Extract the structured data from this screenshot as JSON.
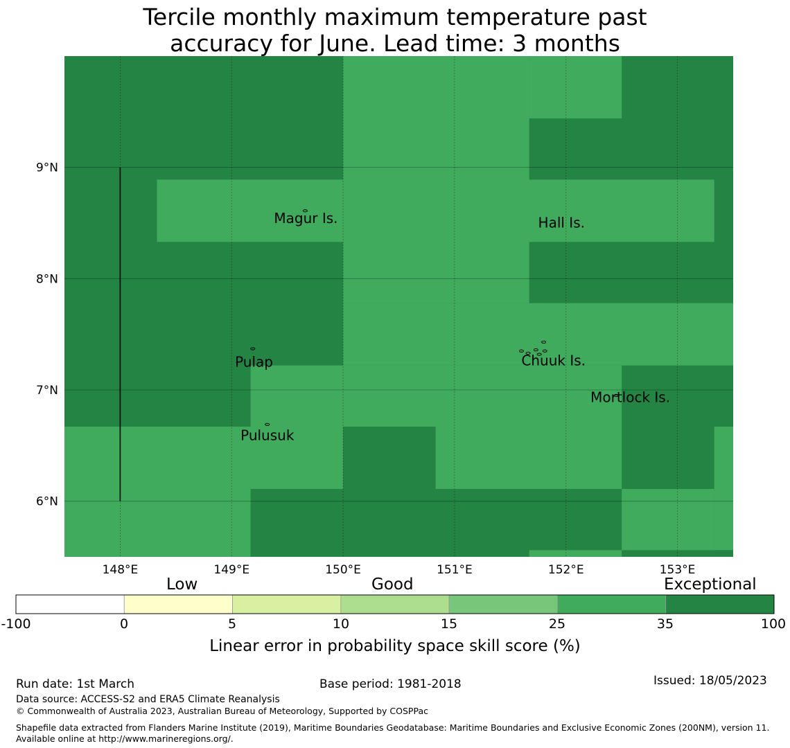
{
  "title_line1": "Tercile monthly maximum temperature past",
  "title_line2": "accuracy for June. Lead time: 3 months",
  "map": {
    "lon_range": [
      147.5,
      153.5
    ],
    "lat_range": [
      5.5,
      10.0
    ],
    "lon_ticks": [
      148,
      149,
      150,
      151,
      152,
      153
    ],
    "lat_ticks": [
      6,
      7,
      8,
      9
    ],
    "lon_tick_labels": [
      "148°E",
      "149°E",
      "150°E",
      "151°E",
      "152°E",
      "153°E"
    ],
    "lat_tick_labels": [
      "6°N",
      "7°N",
      "8°N",
      "9°N"
    ],
    "background_value_class": "exceptional",
    "cells": [
      {
        "lon": [
          150.0,
          151.67
        ],
        "lat": [
          9.44,
          10.0
        ],
        "value": 28
      },
      {
        "lon": [
          151.67,
          152.5
        ],
        "lat": [
          9.44,
          10.0
        ],
        "value": 28
      },
      {
        "lon": [
          148.33,
          153.33
        ],
        "lat": [
          8.33,
          8.89
        ],
        "value": 28
      },
      {
        "lon": [
          150.0,
          151.67
        ],
        "lat": [
          7.78,
          9.44
        ],
        "value": 28
      },
      {
        "lon": [
          150.0,
          153.5
        ],
        "lat": [
          7.22,
          7.78
        ],
        "value": 28
      },
      {
        "lon": [
          149.17,
          152.5
        ],
        "lat": [
          6.67,
          7.22
        ],
        "value": 28
      },
      {
        "lon": [
          147.5,
          150.0
        ],
        "lat": [
          6.11,
          6.67
        ],
        "value": 28
      },
      {
        "lon": [
          150.83,
          152.5
        ],
        "lat": [
          6.11,
          6.67
        ],
        "value": 28
      },
      {
        "lon": [
          147.5,
          149.17
        ],
        "lat": [
          5.5,
          6.11
        ],
        "value": 28
      },
      {
        "lon": [
          152.5,
          153.33
        ],
        "lat": [
          5.56,
          6.11
        ],
        "value": 28
      },
      {
        "lon": [
          153.33,
          153.5
        ],
        "lat": [
          5.56,
          6.67
        ],
        "value": 28
      },
      {
        "lon": [
          151.67,
          152.5
        ],
        "lat": [
          5.5,
          5.56
        ],
        "value": 28
      },
      {
        "lon": [
          153.33,
          153.5
        ],
        "lat": [
          5.5,
          5.56
        ],
        "value": 40
      }
    ],
    "vertical_line": {
      "lon": 148.0,
      "lat": [
        6.0,
        9.0
      ]
    },
    "places": [
      {
        "name": "Magur Is.",
        "lon": 149.38,
        "lat": 8.5
      },
      {
        "name": "Hall Is.",
        "lon": 151.75,
        "lat": 8.46
      },
      {
        "name": "Pulap",
        "lon": 149.03,
        "lat": 7.21
      },
      {
        "name": "Chuuk Is.",
        "lon": 151.6,
        "lat": 7.22
      },
      {
        "name": "Mortlock Is.",
        "lon": 152.22,
        "lat": 6.89
      },
      {
        "name": "Pulusuk",
        "lon": 149.08,
        "lat": 6.55
      }
    ],
    "islands": [
      {
        "lon": 149.66,
        "lat": 8.61
      },
      {
        "lon": 149.19,
        "lat": 7.37
      },
      {
        "lon": 149.32,
        "lat": 6.69
      },
      {
        "lon": 151.6,
        "lat": 7.35
      },
      {
        "lon": 151.66,
        "lat": 7.33
      },
      {
        "lon": 151.73,
        "lat": 7.36
      },
      {
        "lon": 151.8,
        "lat": 7.43
      },
      {
        "lon": 151.81,
        "lat": 7.35
      },
      {
        "lon": 151.76,
        "lat": 7.32
      },
      {
        "lon": 152.45,
        "lat": 6.95
      }
    ]
  },
  "colorbar": {
    "category_low": "Low",
    "category_good": "Good",
    "category_exceptional": "Exceptional",
    "tick_labels": [
      "-100",
      "0",
      "5",
      "10",
      "15",
      "25",
      "35",
      "100"
    ],
    "colors": [
      "#ffffff",
      "#ffffcc",
      "#d9f0a3",
      "#addd8e",
      "#78c679",
      "#41ab5d",
      "#238443"
    ],
    "label": "Linear error in probability space skill score (%)"
  },
  "footer": {
    "run_date": "Run date: 1st March",
    "base_period": "Base period: 1981-2018",
    "issued": "Issued: 18/05/2023",
    "data_source": "Data source: ACCESS-S2 and ERA5 Climate Reanalysis",
    "copyright": "© Commonwealth of Australia 2023, Australian Bureau of Meteorology, Supported by COSPPac",
    "shapefile": "Shapefile data extracted from Flanders Marine Institute (2019), Maritime Boundaries Geodatabase: Maritime Boundaries and Exclusive Economic Zones (200NM), version 11. Available online at http://www.marineregions.org/."
  }
}
